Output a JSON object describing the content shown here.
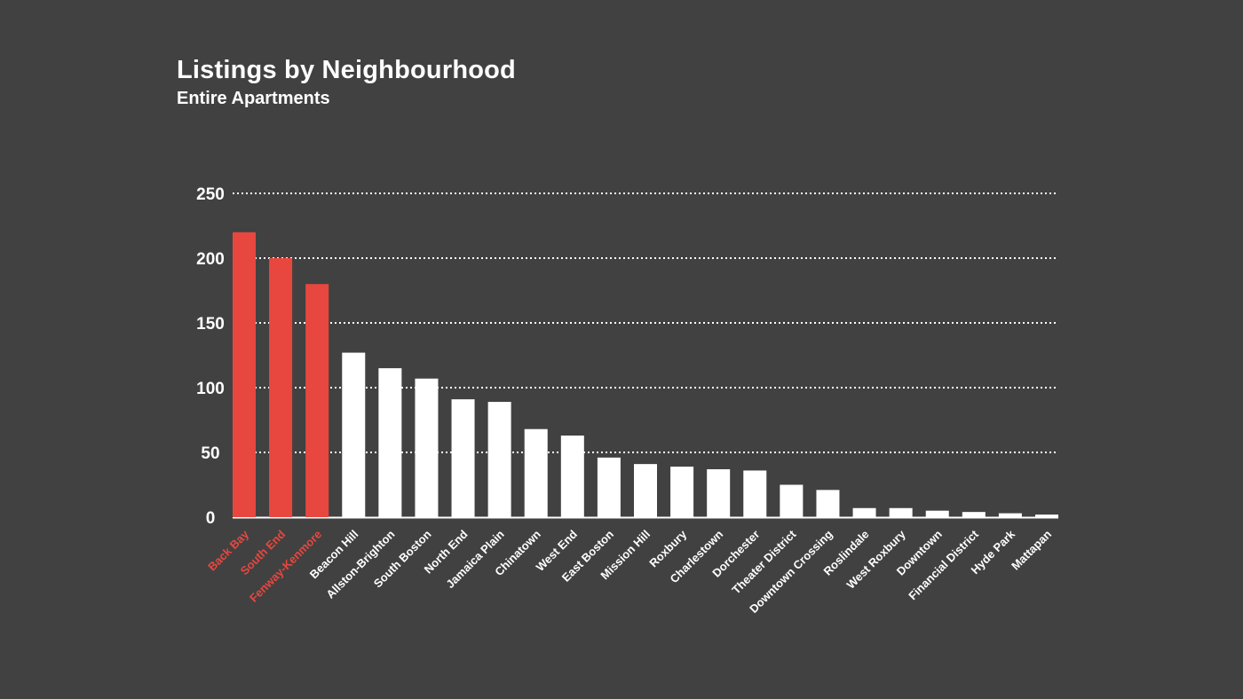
{
  "title": "Listings by Neighbourhood",
  "subtitle": "Entire Apartments",
  "colors": {
    "background": "#414141",
    "highlight": "#e8473f",
    "default": "#ffffff",
    "grid": "#ffffff"
  },
  "chart_data": {
    "type": "bar",
    "title": "Listings by Neighbourhood",
    "subtitle": "Entire Apartments",
    "xlabel": "",
    "ylabel": "",
    "ylim": [
      0,
      250
    ],
    "yticks": [
      0,
      50,
      100,
      150,
      200,
      250
    ],
    "grid": "dotted horizontal",
    "legend": "none",
    "categories": [
      "Back Bay",
      "South End",
      "Fenway-Kenmore",
      "Beacon Hill",
      "Allston-Brighton",
      "South Boston",
      "North End",
      "Jamaica Plain",
      "Chinatown",
      "West End",
      "East Boston",
      "Mission Hill",
      "Roxbury",
      "Charlestown",
      "Dorchester",
      "Theater District",
      "Downtown Crossing",
      "Roslindale",
      "West Roxbury",
      "Downtown",
      "Financial District",
      "Hyde Park",
      "Mattapan"
    ],
    "values": [
      220,
      200,
      180,
      127,
      115,
      107,
      91,
      89,
      68,
      63,
      46,
      41,
      39,
      37,
      36,
      25,
      21,
      7,
      7,
      5,
      4,
      3,
      2
    ],
    "highlighted": [
      "Back Bay",
      "South End",
      "Fenway-Kenmore"
    ]
  }
}
